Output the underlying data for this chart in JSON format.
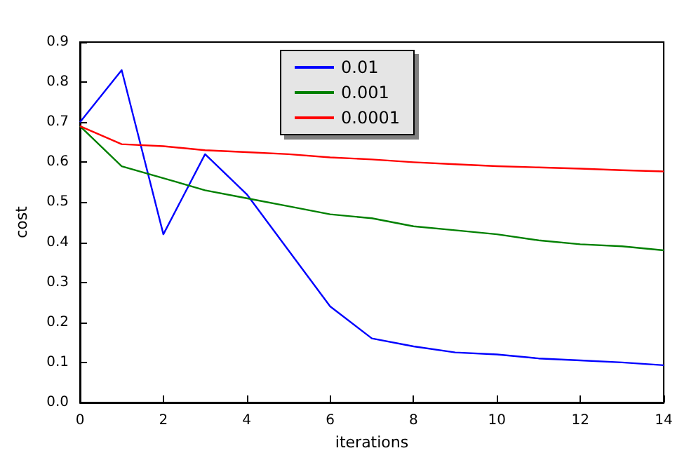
{
  "chart_data": {
    "type": "line",
    "xlabel": "iterations",
    "ylabel": "cost",
    "x": [
      0,
      1,
      2,
      3,
      4,
      5,
      6,
      7,
      8,
      9,
      10,
      11,
      12,
      13,
      14
    ],
    "series": [
      {
        "name": "0.01",
        "color": "#0000ff",
        "values": [
          0.7,
          0.83,
          0.42,
          0.62,
          0.52,
          0.38,
          0.24,
          0.16,
          0.14,
          0.125,
          0.12,
          0.11,
          0.105,
          0.1,
          0.093
        ]
      },
      {
        "name": "0.001",
        "color": "#008000",
        "values": [
          0.69,
          0.59,
          0.56,
          0.53,
          0.51,
          0.49,
          0.47,
          0.46,
          0.44,
          0.43,
          0.42,
          0.405,
          0.395,
          0.39,
          0.38
        ]
      },
      {
        "name": "0.0001",
        "color": "#ff0000",
        "values": [
          0.69,
          0.645,
          0.64,
          0.63,
          0.625,
          0.62,
          0.612,
          0.607,
          0.6,
          0.595,
          0.59,
          0.587,
          0.584,
          0.58,
          0.577
        ]
      }
    ],
    "xlim": [
      0,
      14
    ],
    "xticks": [
      0,
      2,
      4,
      6,
      8,
      10,
      12,
      14
    ],
    "ylim": [
      0,
      0.9
    ],
    "yticks": [
      {
        "value": 0,
        "label": "0.0"
      },
      0.1,
      0.2,
      0.3,
      0.4,
      0.5,
      0.6,
      0.7,
      0.8,
      0.9
    ],
    "grid": false,
    "legend": "top",
    "marker": "none",
    "line_style": "solid"
  }
}
